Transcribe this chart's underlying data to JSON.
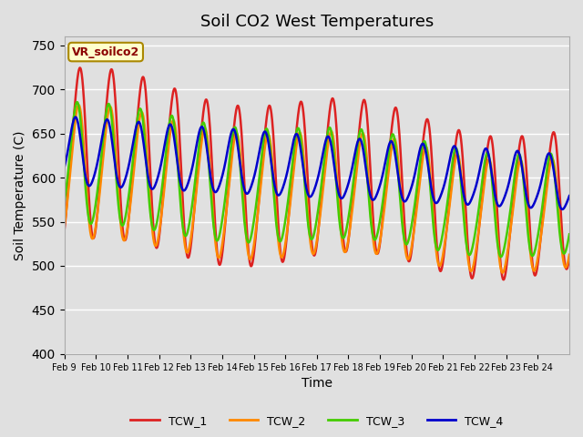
{
  "title": "Soil CO2 West Temperatures",
  "xlabel": "Time",
  "ylabel": "Soil Temperature (C)",
  "ylim": [
    400,
    760
  ],
  "yticks": [
    400,
    450,
    500,
    550,
    600,
    650,
    700,
    750
  ],
  "background_color": "#e0e0e0",
  "plot_bg_color": "#e0e0e0",
  "series_colors": {
    "TCW_1": "#dd2222",
    "TCW_2": "#ff8800",
    "TCW_3": "#44cc00",
    "TCW_4": "#0000cc"
  },
  "annotation_text": "VR_soilco2",
  "annotation_bg": "#ffffcc",
  "annotation_border": "#aa8800",
  "xtick_labels": [
    "Feb 9",
    "Feb 10",
    "Feb 11",
    "Feb 12",
    "Feb 13",
    "Feb 14",
    "Feb 15",
    "Feb 16",
    "Feb 17",
    "Feb 18",
    "Feb 19",
    "Feb 20",
    "Feb 21",
    "Feb 22",
    "Feb 23",
    "Feb 24"
  ],
  "line_width": 1.8,
  "n_days": 16
}
